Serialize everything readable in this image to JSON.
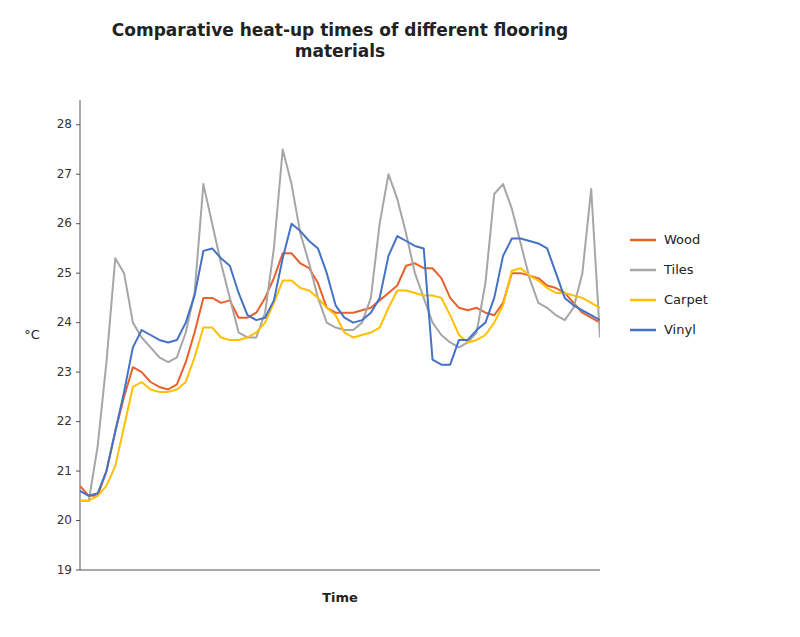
{
  "chart_data": {
    "type": "line",
    "title": "Comparative heat-up times of different flooring\nmaterials",
    "x_label": "Time",
    "y_label": "°C",
    "ylim": [
      19,
      28.5
    ],
    "yticks": [
      19,
      20,
      21,
      22,
      23,
      24,
      25,
      26,
      27,
      28
    ],
    "grid": false,
    "legend": "right",
    "tick_labels": "y",
    "series": [
      {
        "name": "Wood",
        "color": "#E8612C",
        "values": [
          20.7,
          20.5,
          20.5,
          21.0,
          21.8,
          22.5,
          23.1,
          23.0,
          22.8,
          22.7,
          22.65,
          22.75,
          23.2,
          23.8,
          24.5,
          24.5,
          24.4,
          24.45,
          24.1,
          24.1,
          24.2,
          24.5,
          24.9,
          25.4,
          25.4,
          25.2,
          25.1,
          24.8,
          24.3,
          24.2,
          24.2,
          24.2,
          24.25,
          24.3,
          24.45,
          24.6,
          24.75,
          25.15,
          25.2,
          25.1,
          25.1,
          24.9,
          24.5,
          24.3,
          24.25,
          24.3,
          24.2,
          24.15,
          24.4,
          25.0,
          25.0,
          24.95,
          24.9,
          24.75,
          24.7,
          24.6,
          24.4,
          24.2,
          24.1,
          24.0
        ]
      },
      {
        "name": "Tiles",
        "color": "#A6A6A6",
        "values": [
          20.4,
          20.4,
          21.5,
          23.2,
          25.3,
          25.0,
          24.0,
          23.7,
          23.5,
          23.3,
          23.2,
          23.3,
          23.8,
          24.6,
          26.8,
          26.0,
          25.2,
          24.5,
          23.8,
          23.7,
          23.7,
          24.2,
          25.5,
          27.5,
          26.8,
          25.8,
          25.2,
          24.5,
          24.0,
          23.9,
          23.85,
          23.85,
          24.0,
          24.5,
          26.0,
          27.0,
          26.5,
          25.8,
          25.0,
          24.5,
          24.0,
          23.75,
          23.6,
          23.5,
          23.6,
          23.8,
          24.8,
          26.6,
          26.8,
          26.3,
          25.6,
          24.9,
          24.4,
          24.3,
          24.15,
          24.05,
          24.3,
          25.0,
          26.7,
          23.7
        ]
      },
      {
        "name": "Carpet",
        "color": "#FFC000",
        "values": [
          20.4,
          20.4,
          20.5,
          20.7,
          21.1,
          21.9,
          22.7,
          22.8,
          22.65,
          22.6,
          22.6,
          22.65,
          22.8,
          23.3,
          23.9,
          23.9,
          23.7,
          23.65,
          23.65,
          23.7,
          23.8,
          24.0,
          24.4,
          24.85,
          24.85,
          24.7,
          24.65,
          24.5,
          24.3,
          24.15,
          23.8,
          23.7,
          23.75,
          23.8,
          23.9,
          24.3,
          24.65,
          24.65,
          24.6,
          24.55,
          24.55,
          24.5,
          24.15,
          23.75,
          23.6,
          23.65,
          23.75,
          24.0,
          24.35,
          25.05,
          25.1,
          24.95,
          24.85,
          24.7,
          24.6,
          24.6,
          24.55,
          24.5,
          24.4,
          24.3
        ]
      },
      {
        "name": "Vinyl",
        "color": "#4472C4",
        "values": [
          20.6,
          20.5,
          20.55,
          21.0,
          21.8,
          22.6,
          23.5,
          23.85,
          23.75,
          23.65,
          23.6,
          23.65,
          24.0,
          24.55,
          25.45,
          25.5,
          25.3,
          25.15,
          24.6,
          24.15,
          24.05,
          24.1,
          24.45,
          25.3,
          26.0,
          25.85,
          25.65,
          25.5,
          25.0,
          24.35,
          24.1,
          24.0,
          24.05,
          24.2,
          24.5,
          25.35,
          25.75,
          25.65,
          25.55,
          25.5,
          23.25,
          23.15,
          23.15,
          23.65,
          23.65,
          23.85,
          24.0,
          24.5,
          25.35,
          25.7,
          25.7,
          25.65,
          25.6,
          25.5,
          25.0,
          24.5,
          24.35,
          24.25,
          24.15,
          24.05
        ]
      }
    ]
  }
}
